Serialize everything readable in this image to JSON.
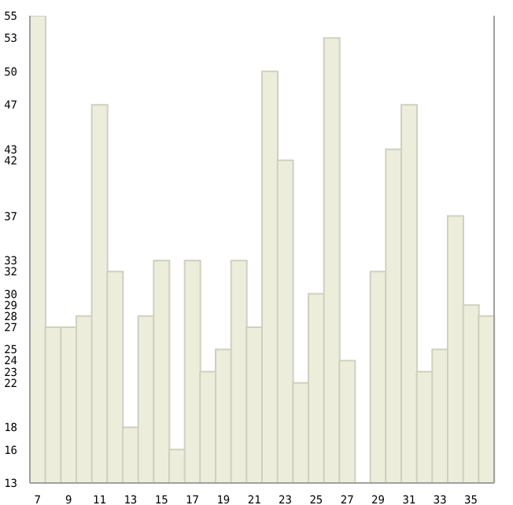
{
  "chart_data": {
    "type": "bar",
    "categories": [
      "7",
      null,
      "9",
      null,
      "11",
      null,
      "13",
      null,
      "15",
      null,
      "17",
      null,
      "19",
      null,
      "21",
      null,
      "23",
      null,
      "25",
      null,
      "27",
      null,
      "29",
      null,
      "31",
      null,
      "33",
      null,
      "35",
      null
    ],
    "values": [
      55,
      27,
      27,
      28,
      47,
      32,
      18,
      28,
      33,
      16,
      33,
      23,
      25,
      33,
      27,
      50,
      42,
      22,
      30,
      53,
      24,
      13,
      32,
      43,
      47,
      23,
      25,
      37,
      29,
      28
    ],
    "color": "#ededdc",
    "ylim": [
      13,
      55
    ],
    "yticks": [
      13,
      16,
      18,
      22,
      23,
      24,
      25,
      27,
      28,
      29,
      30,
      32,
      33,
      37,
      42,
      43,
      47,
      50,
      53,
      55
    ]
  }
}
